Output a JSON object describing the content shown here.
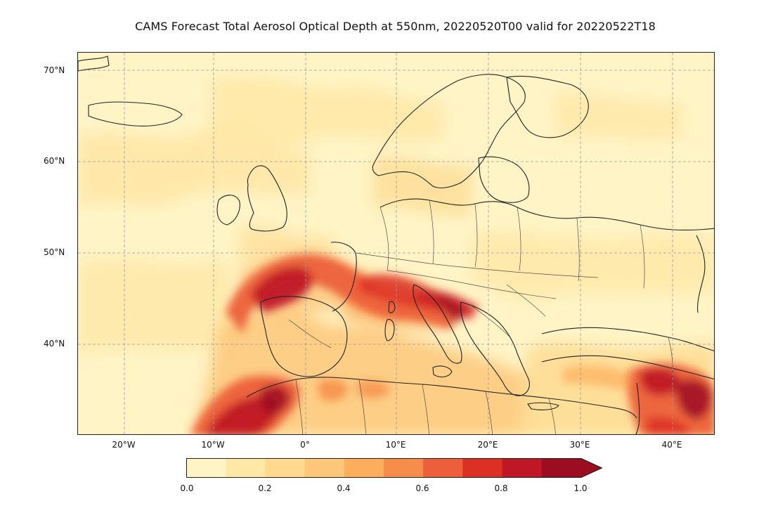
{
  "title": "CAMS Forecast Total Aerosol Optical Depth at 550nm, 20220520T00 valid for 20220522T18",
  "latitude_labels": [
    "70°N",
    "60°N",
    "50°N",
    "40°N"
  ],
  "longitude_labels": [
    "20°W",
    "10°W",
    "0°",
    "10°E",
    "20°E",
    "30°E",
    "40°E"
  ],
  "colorbar": {
    "tick_labels": [
      "0.0",
      "0.2",
      "0.4",
      "0.6",
      "0.8",
      "1.0"
    ],
    "extend": "max",
    "bin_colors": [
      "#fff4c6",
      "#ffe7a6",
      "#fed98e",
      "#fdc77a",
      "#fcae5c",
      "#f68d4b",
      "#ec5f3a",
      "#dc3025",
      "#c01727",
      "#9c0d22"
    ]
  }
}
